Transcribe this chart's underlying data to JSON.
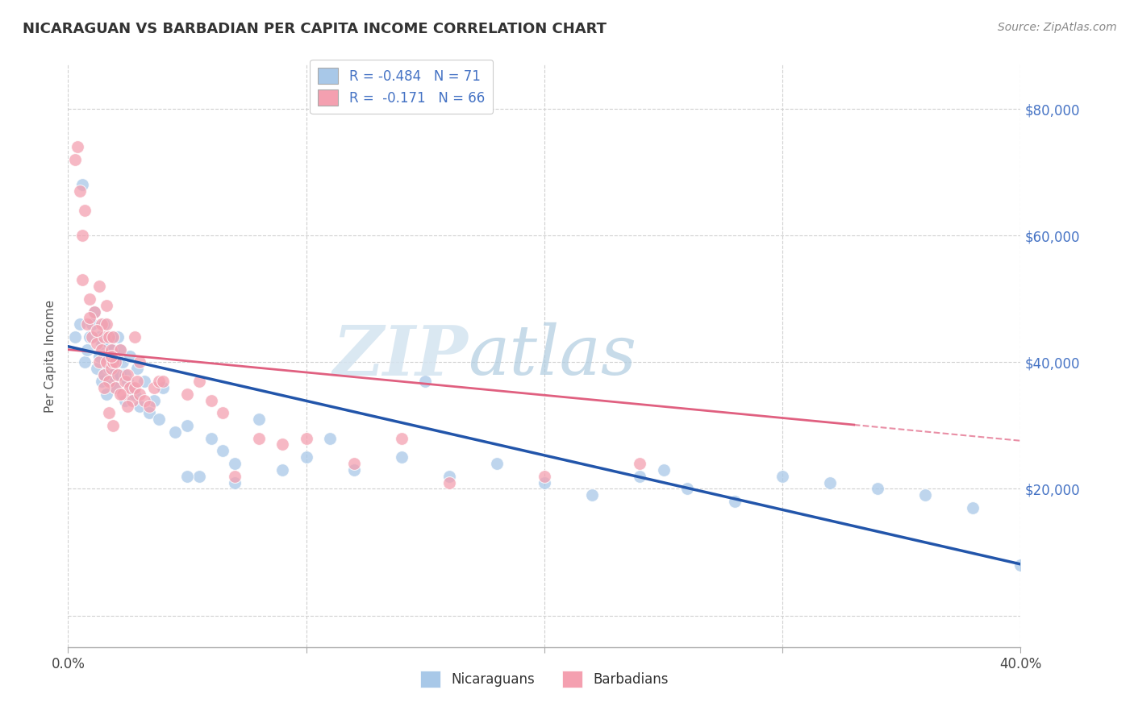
{
  "title": "NICARAGUAN VS BARBADIAN PER CAPITA INCOME CORRELATION CHART",
  "source": "Source: ZipAtlas.com",
  "ylabel": "Per Capita Income",
  "xlim": [
    0.0,
    0.4
  ],
  "ylim": [
    -5000,
    87000
  ],
  "yticks": [
    0,
    20000,
    40000,
    60000,
    80000
  ],
  "ytick_labels": [
    "",
    "$20,000",
    "$40,000",
    "$60,000",
    "$80,000"
  ],
  "xticks": [
    0.0,
    0.1,
    0.2,
    0.3,
    0.4
  ],
  "xtick_labels": [
    "0.0%",
    "",
    "",
    "",
    "40.0%"
  ],
  "blue_color": "#a8c8e8",
  "pink_color": "#f4a0b0",
  "blue_line_color": "#2255aa",
  "pink_line_color": "#e06080",
  "grid_color": "#d0d0d0",
  "background_color": "#ffffff",
  "legend_entry1": "Nicaraguans",
  "legend_entry2": "Barbadians",
  "blue_intercept": 42500,
  "blue_slope": -86000,
  "pink_intercept": 42000,
  "pink_slope": -36000,
  "pink_line_x_max": 0.33,
  "blue_scatter_x": [
    0.003,
    0.005,
    0.006,
    0.007,
    0.008,
    0.009,
    0.01,
    0.011,
    0.012,
    0.013,
    0.013,
    0.014,
    0.014,
    0.015,
    0.015,
    0.016,
    0.016,
    0.017,
    0.017,
    0.018,
    0.018,
    0.019,
    0.019,
    0.02,
    0.02,
    0.021,
    0.022,
    0.022,
    0.023,
    0.024,
    0.024,
    0.025,
    0.026,
    0.027,
    0.028,
    0.029,
    0.03,
    0.032,
    0.034,
    0.036,
    0.038,
    0.04,
    0.045,
    0.05,
    0.055,
    0.06,
    0.065,
    0.07,
    0.08,
    0.09,
    0.1,
    0.11,
    0.12,
    0.14,
    0.16,
    0.18,
    0.2,
    0.22,
    0.24,
    0.26,
    0.28,
    0.3,
    0.32,
    0.34,
    0.36,
    0.38,
    0.4,
    0.15,
    0.25,
    0.05,
    0.07
  ],
  "blue_scatter_y": [
    44000,
    46000,
    68000,
    40000,
    42000,
    44000,
    46000,
    48000,
    39000,
    41000,
    44000,
    43000,
    37000,
    38000,
    46000,
    41000,
    35000,
    39000,
    43000,
    37000,
    44000,
    38000,
    42000,
    40000,
    36000,
    44000,
    38000,
    42000,
    40000,
    34000,
    38000,
    37000,
    41000,
    36000,
    35000,
    39000,
    33000,
    37000,
    32000,
    34000,
    31000,
    36000,
    29000,
    30000,
    22000,
    28000,
    26000,
    24000,
    31000,
    23000,
    25000,
    28000,
    23000,
    25000,
    22000,
    24000,
    21000,
    19000,
    22000,
    20000,
    18000,
    22000,
    21000,
    20000,
    19000,
    17000,
    8000,
    37000,
    23000,
    22000,
    21000
  ],
  "pink_scatter_x": [
    0.003,
    0.004,
    0.005,
    0.006,
    0.007,
    0.008,
    0.009,
    0.01,
    0.011,
    0.012,
    0.013,
    0.013,
    0.014,
    0.014,
    0.015,
    0.015,
    0.016,
    0.016,
    0.017,
    0.017,
    0.018,
    0.018,
    0.019,
    0.019,
    0.02,
    0.02,
    0.021,
    0.022,
    0.023,
    0.024,
    0.025,
    0.026,
    0.027,
    0.028,
    0.029,
    0.03,
    0.032,
    0.034,
    0.036,
    0.038,
    0.04,
    0.05,
    0.055,
    0.06,
    0.065,
    0.07,
    0.08,
    0.09,
    0.1,
    0.12,
    0.14,
    0.16,
    0.2,
    0.24,
    0.016,
    0.019,
    0.022,
    0.025,
    0.028,
    0.03,
    0.006,
    0.009,
    0.018,
    0.015,
    0.012,
    0.017
  ],
  "pink_scatter_y": [
    72000,
    74000,
    67000,
    60000,
    64000,
    46000,
    50000,
    44000,
    48000,
    43000,
    52000,
    40000,
    42000,
    46000,
    44000,
    38000,
    46000,
    40000,
    44000,
    37000,
    42000,
    39000,
    40000,
    44000,
    36000,
    40000,
    38000,
    42000,
    35000,
    37000,
    38000,
    36000,
    34000,
    36000,
    37000,
    35000,
    34000,
    33000,
    36000,
    37000,
    37000,
    35000,
    37000,
    34000,
    32000,
    22000,
    28000,
    27000,
    28000,
    24000,
    28000,
    21000,
    22000,
    24000,
    49000,
    30000,
    35000,
    33000,
    44000,
    40000,
    53000,
    47000,
    41000,
    36000,
    45000,
    32000
  ]
}
